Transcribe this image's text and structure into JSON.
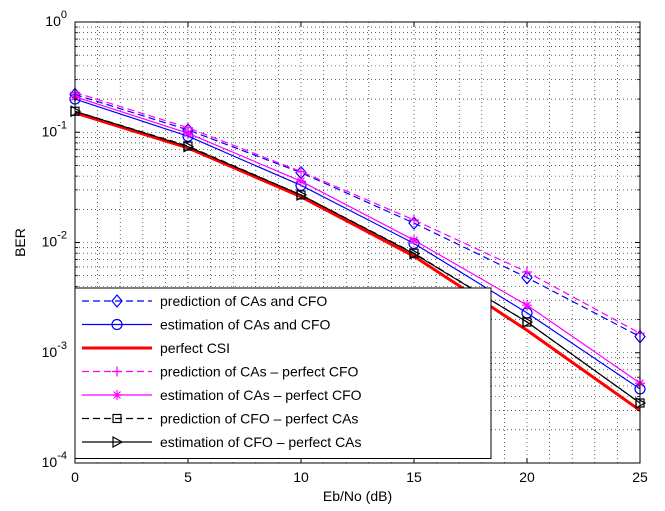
{
  "chart_data": {
    "type": "line",
    "xlabel": "Eb/No (dB)",
    "ylabel": "BER",
    "xlim": [
      0,
      25
    ],
    "ylim": [
      0.0001,
      1
    ],
    "yscale": "log",
    "grid": true,
    "legend_position": "bottom-left",
    "x_ticks": [
      "0",
      "5",
      "10",
      "15",
      "20",
      "25"
    ],
    "y_ticks": [
      {
        "base": "10",
        "exp": "-4"
      },
      {
        "base": "10",
        "exp": "-3"
      },
      {
        "base": "10",
        "exp": "-2"
      },
      {
        "base": "10",
        "exp": "-1"
      },
      {
        "base": "10",
        "exp": "0"
      }
    ],
    "x": [
      0,
      5,
      10,
      15,
      20,
      25
    ],
    "series": [
      {
        "name": "prediction of CAs and CFO",
        "color": "#0000ff",
        "dash": "dashed",
        "marker": "diamond",
        "width": 1.2,
        "values": [
          0.22,
          0.105,
          0.043,
          0.015,
          0.0048,
          0.0014
        ]
      },
      {
        "name": "estimation of CAs and CFO",
        "color": "#0000ff",
        "dash": "solid",
        "marker": "circle",
        "width": 1.2,
        "values": [
          0.2,
          0.092,
          0.033,
          0.0098,
          0.0023,
          0.00047
        ]
      },
      {
        "name": "perfect CSI",
        "color": "#ff0000",
        "dash": "solid",
        "marker": "none",
        "width": 3,
        "values": [
          0.15,
          0.072,
          0.026,
          0.0075,
          0.0016,
          0.0003
        ]
      },
      {
        "name": "prediction of CAs – perfect CFO",
        "color": "#ff00ff",
        "dash": "dashed",
        "marker": "plus",
        "width": 1.2,
        "values": [
          0.23,
          0.11,
          0.044,
          0.016,
          0.0054,
          0.0015
        ]
      },
      {
        "name": "estimation of CAs – perfect CFO",
        "color": "#ff00ff",
        "dash": "solid",
        "marker": "asterisk",
        "width": 1.2,
        "values": [
          0.21,
          0.098,
          0.036,
          0.0105,
          0.0027,
          0.00053
        ]
      },
      {
        "name": "prediction of CFO – perfect CAs",
        "color": "#000000",
        "dash": "dashed",
        "marker": "square",
        "width": 1.2,
        "values": [
          0.155,
          0.075,
          0.027,
          0.008,
          0.0019,
          0.00035
        ]
      },
      {
        "name": "estimation of CFO – perfect CAs",
        "color": "#000000",
        "dash": "solid",
        "marker": "triangle-right",
        "width": 1.2,
        "values": [
          0.155,
          0.074,
          0.027,
          0.0079,
          0.0019,
          0.00035
        ]
      }
    ]
  }
}
